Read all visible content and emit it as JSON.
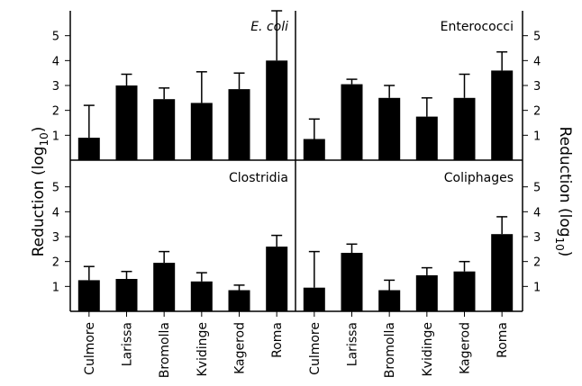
{
  "chart_data": [
    {
      "type": "bar",
      "title": "E. coli",
      "categories": [
        "Culmore",
        "Larissa",
        "Bromolla",
        "Kvidinge",
        "Kagerod",
        "Roma"
      ],
      "values": [
        0.9,
        3.0,
        2.45,
        2.3,
        2.85,
        4.0
      ],
      "errors": [
        1.3,
        0.45,
        0.45,
        1.25,
        0.65,
        2.0
      ],
      "ylabel": "Reduction (log10)",
      "ylim": [
        0,
        6
      ],
      "yticks": [
        "1",
        "2",
        "3",
        "4",
        "5"
      ],
      "position": "top-left"
    },
    {
      "type": "bar",
      "title": "Enterococci",
      "categories": [
        "Culmore",
        "Larissa",
        "Bromolla",
        "Kvidinge",
        "Kagerod",
        "Roma"
      ],
      "values": [
        0.85,
        3.05,
        2.5,
        1.75,
        2.5,
        3.6
      ],
      "errors": [
        0.8,
        0.2,
        0.5,
        0.75,
        0.95,
        0.75
      ],
      "ylabel": "Reduction (log10)",
      "ylim": [
        0,
        6
      ],
      "yticks": [
        "1",
        "2",
        "3",
        "4",
        "5"
      ],
      "position": "top-right"
    },
    {
      "type": "bar",
      "title": "Clostridia",
      "categories": [
        "Culmore",
        "Larissa",
        "Bromolla",
        "Kvidinge",
        "Kagerod",
        "Roma"
      ],
      "values": [
        1.25,
        1.3,
        1.95,
        1.2,
        0.85,
        2.6
      ],
      "errors": [
        0.55,
        0.3,
        0.45,
        0.35,
        0.2,
        0.45
      ],
      "ylabel": "Reduction (log10)",
      "ylim": [
        0,
        6
      ],
      "yticks": [
        "1",
        "2",
        "3",
        "4",
        "5"
      ],
      "position": "bottom-left"
    },
    {
      "type": "bar",
      "title": "Coliphages",
      "categories": [
        "Culmore",
        "Larissa",
        "Bromolla",
        "Kvidinge",
        "Kagerod",
        "Roma"
      ],
      "values": [
        0.95,
        2.35,
        0.85,
        1.45,
        1.6,
        3.1
      ],
      "errors": [
        1.45,
        0.35,
        0.4,
        0.3,
        0.4,
        0.7
      ],
      "ylabel": "Reduction (log10)",
      "ylim": [
        0,
        6
      ],
      "yticks": [
        "1",
        "2",
        "3",
        "4",
        "5"
      ],
      "position": "bottom-right"
    }
  ],
  "axis_titles": {
    "left": {
      "base": "Reduction (log",
      "sub": "10",
      "close": ")"
    },
    "right": {
      "base": "Reduction (log",
      "sub": "10",
      "close": ")"
    }
  }
}
